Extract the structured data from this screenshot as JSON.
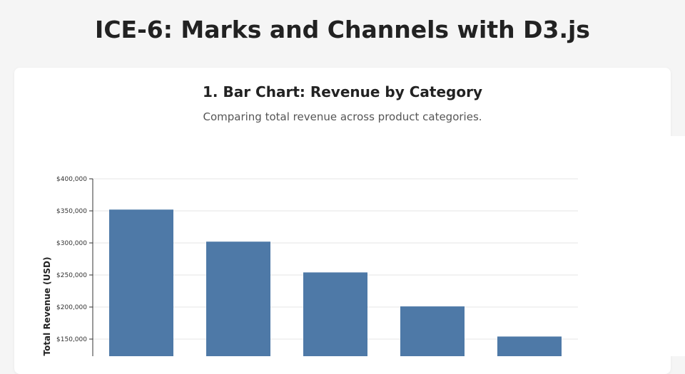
{
  "page": {
    "title": "ICE-6: Marks and Channels with D3.js"
  },
  "card": {
    "title": "1. Bar Chart: Revenue by Category",
    "subtitle": "Comparing total revenue across product categories."
  },
  "colors": {
    "bar": "#4e79a7",
    "grid": "#e5e5e5",
    "axis": "#333333",
    "background": "#f5f5f5",
    "card": "#ffffff"
  },
  "chart_data": {
    "type": "bar",
    "title": "1. Bar Chart: Revenue by Category",
    "subtitle": "Comparing total revenue across product categories.",
    "xlabel": "",
    "ylabel": "Total Revenue (USD)",
    "ylim": [
      0,
      400000
    ],
    "yticks": [
      400000,
      350000,
      300000,
      250000,
      200000,
      150000
    ],
    "ytick_labels": [
      "$400,000",
      "$350,000",
      "$300,000",
      "$250,000",
      "$200,000",
      "$150,000"
    ],
    "categories": [
      "",
      "",
      "",
      "",
      ""
    ],
    "values": [
      352000,
      302000,
      254000,
      201000,
      154000
    ],
    "grid": true,
    "legend": "none"
  }
}
